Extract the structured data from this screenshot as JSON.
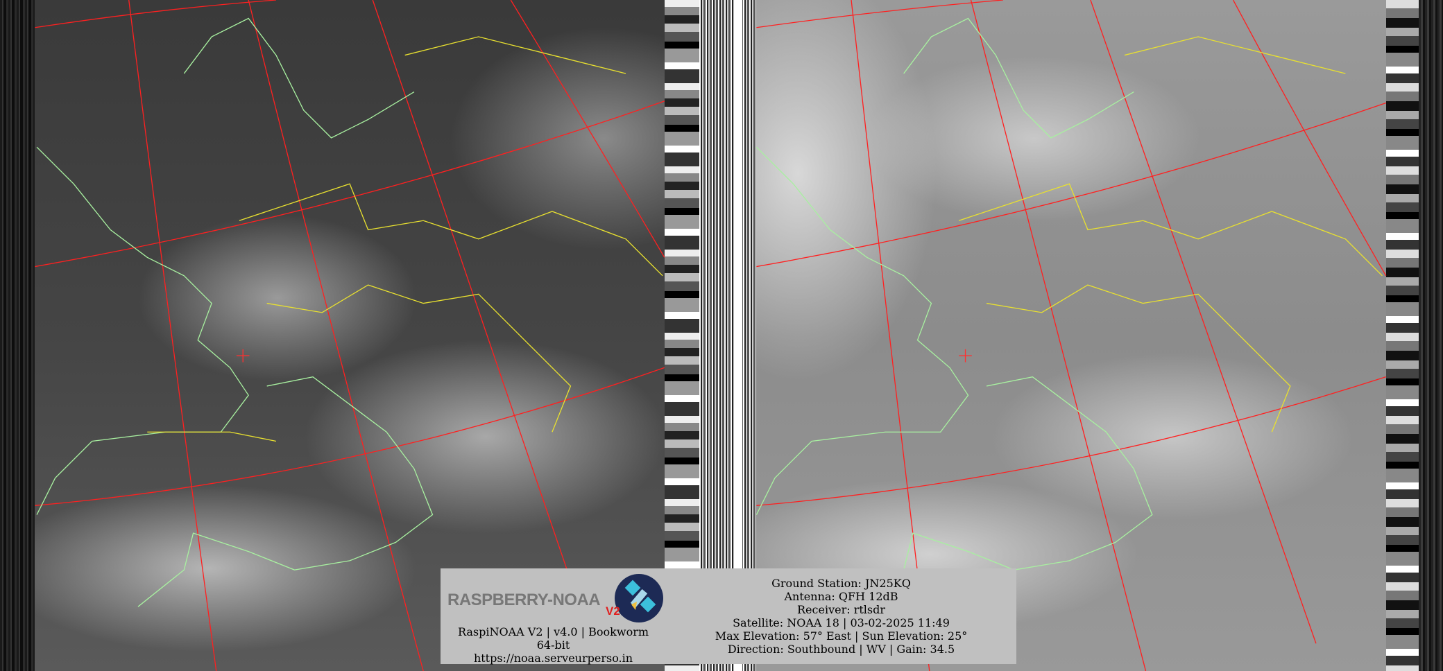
{
  "logo": {
    "text": "RASPBERRY-NOAA",
    "badge": "V2",
    "icon": "satellite-icon"
  },
  "station": {
    "version_line": "RaspiNOAA V2 | v4.0 | Bookworm 64-bit",
    "url": "https://noaa.serveurperso.in"
  },
  "pass": {
    "ground_station": "Ground Station: JN25KQ",
    "antenna": "Antenna: QFH 12dB",
    "receiver": "Receiver: rtlsdr",
    "satellite": "Satellite: NOAA 18 | 03-02-2025 11:49",
    "elevation": "Max Elevation: 57° East | Sun Elevation: 25°",
    "direction": "Direction: Southbound | WV | Gain: 34.5"
  },
  "colors": {
    "graticule": "#ff2020",
    "coastline": "#a8f0a0",
    "borders": "#e8e030",
    "info_bg": "#c0c0c0"
  }
}
